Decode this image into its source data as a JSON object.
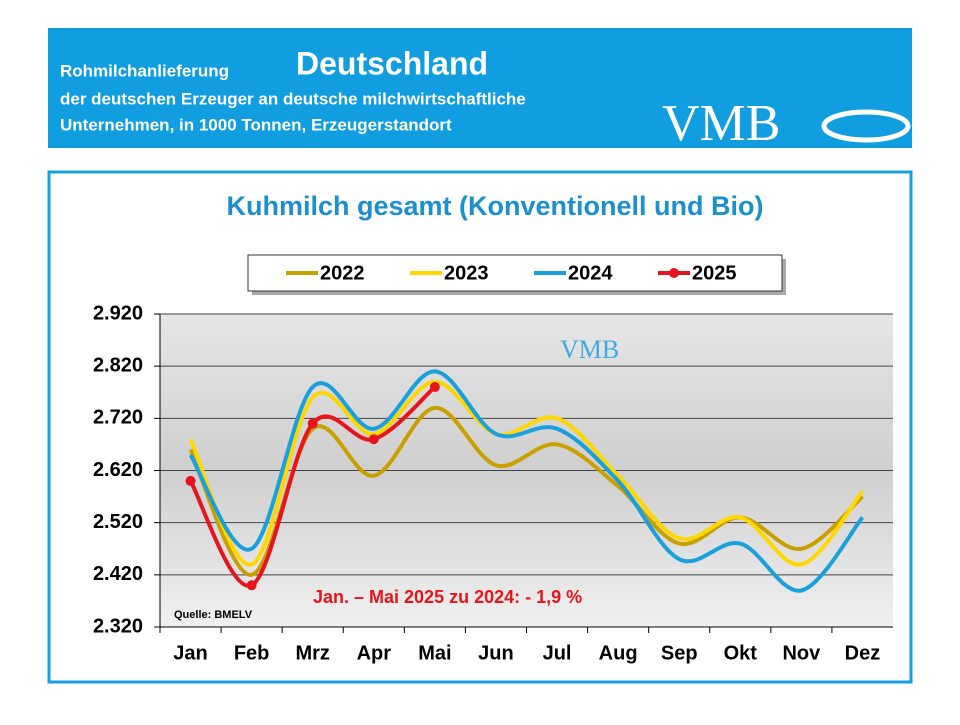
{
  "header": {
    "line1": "Rohmilchanlieferung",
    "country": "Deutschland",
    "line2": "der deutschen Erzeuger an deutsche milchwirtschaftliche",
    "line3": "Unternehmen, in 1000 Tonnen, Erzeugerstandort",
    "logo": "VMB"
  },
  "chart_data": {
    "type": "line",
    "title": "Kuhmilch gesamt (Konventionell und Bio)",
    "categories": [
      "Jan",
      "Feb",
      "Mrz",
      "Apr",
      "Mai",
      "Jun",
      "Jul",
      "Aug",
      "Sep",
      "Okt",
      "Nov",
      "Dez"
    ],
    "series": [
      {
        "name": "2022",
        "color": "#c9a000",
        "values": [
          2660,
          2420,
          2700,
          2610,
          2740,
          2630,
          2670,
          2590,
          2480,
          2530,
          2470,
          2570
        ]
      },
      {
        "name": "2023",
        "color": "#ffd700",
        "values": [
          2680,
          2440,
          2760,
          2690,
          2790,
          2690,
          2720,
          2610,
          2490,
          2530,
          2440,
          2580
        ]
      },
      {
        "name": "2024",
        "color": "#1aa0dc",
        "values": [
          2650,
          2470,
          2780,
          2700,
          2810,
          2690,
          2700,
          2600,
          2450,
          2480,
          2390,
          2530
        ]
      },
      {
        "name": "2025",
        "color": "#e8141c",
        "markers": true,
        "values": [
          2600,
          2400,
          2710,
          2680,
          2780,
          null,
          null,
          null,
          null,
          null,
          null,
          null
        ]
      }
    ],
    "ylim": [
      2320,
      2920
    ],
    "yticks": [
      {
        "value": 2320,
        "label": "2.320"
      },
      {
        "value": 2420,
        "label": "2.420"
      },
      {
        "value": 2520,
        "label": "2.520"
      },
      {
        "value": 2620,
        "label": "2.620"
      },
      {
        "value": 2720,
        "label": "2.720"
      },
      {
        "value": 2820,
        "label": "2.820"
      },
      {
        "value": 2920,
        "label": "2.920"
      }
    ],
    "grid": true,
    "annotation": "Jan. – Mai 2025 zu 2024:  - 1,9 %",
    "source": "Quelle:  BMELV",
    "watermark": "VMB"
  }
}
